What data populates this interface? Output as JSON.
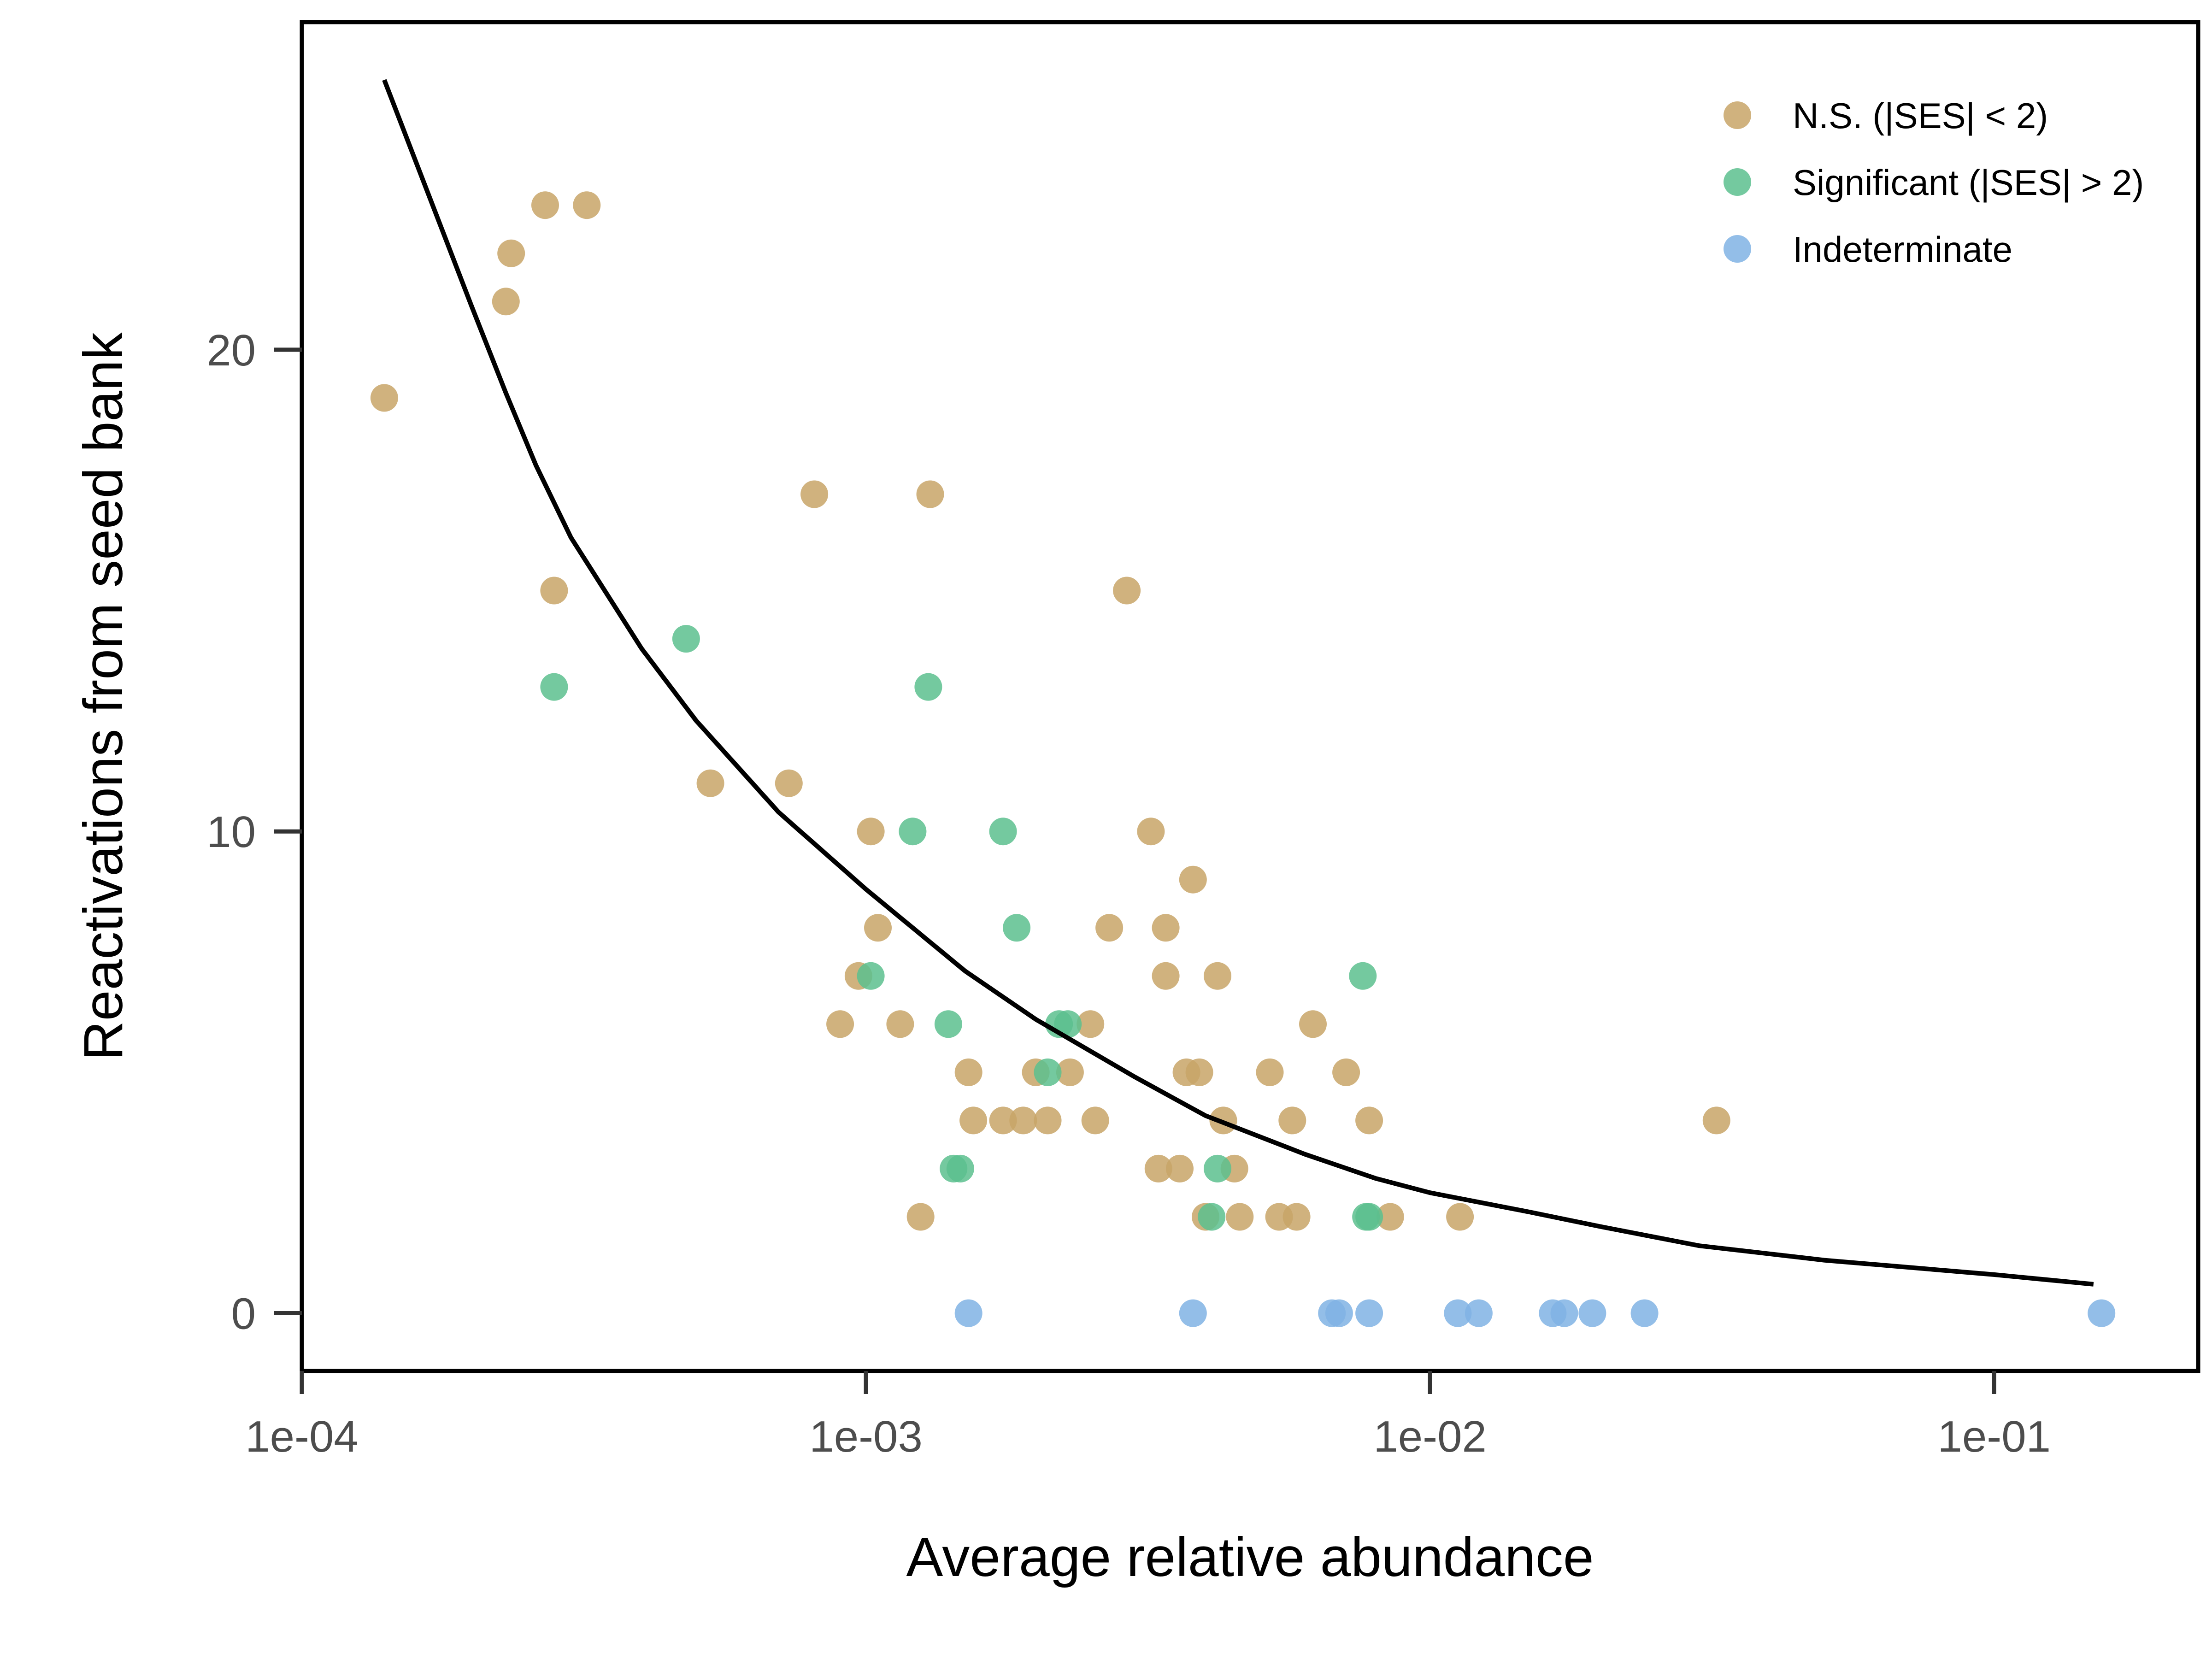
{
  "chart_data": {
    "type": "scatter",
    "title": "",
    "xlabel": "Average relative abundance",
    "ylabel": "Reactivations from seed bank",
    "x_scale": "log10",
    "xlim": [
      0.0001,
      0.23
    ],
    "ylim": [
      -1.2,
      26.8
    ],
    "x_ticks": [
      {
        "value": 0.0001,
        "label": "1e-04"
      },
      {
        "value": 0.001,
        "label": "1e-03"
      },
      {
        "value": 0.01,
        "label": "1e-02"
      },
      {
        "value": 0.1,
        "label": "1e-01"
      }
    ],
    "y_ticks": [
      {
        "value": 0,
        "label": "0"
      },
      {
        "value": 10,
        "label": "10"
      },
      {
        "value": 20,
        "label": "20"
      }
    ],
    "grid": false,
    "legend_position": "top-right",
    "series": [
      {
        "name": "N.S. (|SES| < 2)",
        "color": "#c8a467",
        "points": [
          [
            0.00014,
            19
          ],
          [
            0.00023,
            21
          ],
          [
            0.000235,
            22
          ],
          [
            0.00027,
            23
          ],
          [
            0.00032,
            23
          ],
          [
            0.00028,
            15
          ],
          [
            0.00053,
            11
          ],
          [
            0.00073,
            11
          ],
          [
            0.00081,
            17
          ],
          [
            0.0013,
            17
          ],
          [
            0.00102,
            10
          ],
          [
            0.00105,
            8
          ],
          [
            0.00097,
            7
          ],
          [
            0.0009,
            6
          ],
          [
            0.00115,
            6
          ],
          [
            0.00125,
            2
          ],
          [
            0.00152,
            5
          ],
          [
            0.00155,
            4
          ],
          [
            0.00175,
            4
          ],
          [
            0.0019,
            4
          ],
          [
            0.002,
            5
          ],
          [
            0.0021,
            4
          ],
          [
            0.0023,
            5
          ],
          [
            0.0025,
            6
          ],
          [
            0.00255,
            4
          ],
          [
            0.0027,
            8
          ],
          [
            0.0029,
            15
          ],
          [
            0.0032,
            10
          ],
          [
            0.0033,
            3
          ],
          [
            0.0034,
            8
          ],
          [
            0.0034,
            7
          ],
          [
            0.0036,
            3
          ],
          [
            0.0037,
            5
          ],
          [
            0.0038,
            9
          ],
          [
            0.0039,
            5
          ],
          [
            0.004,
            2
          ],
          [
            0.0042,
            7
          ],
          [
            0.0043,
            4
          ],
          [
            0.0045,
            3
          ],
          [
            0.0046,
            2
          ],
          [
            0.0052,
            5
          ],
          [
            0.0054,
            2
          ],
          [
            0.0057,
            4
          ],
          [
            0.0058,
            2
          ],
          [
            0.0062,
            6
          ],
          [
            0.0071,
            5
          ],
          [
            0.0078,
            4
          ],
          [
            0.0085,
            2
          ],
          [
            0.0113,
            2
          ],
          [
            0.0322,
            4
          ]
        ]
      },
      {
        "name": "Significant (|SES| > 2)",
        "color": "#5cc08e",
        "points": [
          [
            0.00028,
            13
          ],
          [
            0.00048,
            14
          ],
          [
            0.00102,
            7
          ],
          [
            0.00121,
            10
          ],
          [
            0.00129,
            13
          ],
          [
            0.0014,
            6
          ],
          [
            0.00143,
            3
          ],
          [
            0.00147,
            3
          ],
          [
            0.00175,
            10
          ],
          [
            0.00185,
            8
          ],
          [
            0.0021,
            5
          ],
          [
            0.0022,
            6
          ],
          [
            0.00228,
            6
          ],
          [
            0.0041,
            2
          ],
          [
            0.0042,
            3
          ],
          [
            0.0076,
            7
          ],
          [
            0.0077,
            2
          ],
          [
            0.0078,
            2
          ]
        ]
      },
      {
        "name": "Indeterminate",
        "color": "#80b3e4",
        "points": [
          [
            0.00152,
            0
          ],
          [
            0.0038,
            0
          ],
          [
            0.0067,
            0
          ],
          [
            0.0069,
            0
          ],
          [
            0.0078,
            0
          ],
          [
            0.0112,
            0
          ],
          [
            0.0122,
            0
          ],
          [
            0.0165,
            0
          ],
          [
            0.0173,
            0
          ],
          [
            0.0194,
            0
          ],
          [
            0.024,
            0
          ],
          [
            0.155,
            0
          ]
        ]
      }
    ],
    "fit_line": {
      "color": "#000000",
      "points": [
        [
          0.00014,
          25.6
        ],
        [
          0.0002,
          20.9
        ],
        [
          0.00023,
          19.1
        ],
        [
          0.00026,
          17.6
        ],
        [
          0.0003,
          16.1
        ],
        [
          0.0004,
          13.8
        ],
        [
          0.0005,
          12.3
        ],
        [
          0.0007,
          10.4
        ],
        [
          0.001,
          8.8
        ],
        [
          0.0015,
          7.1
        ],
        [
          0.002,
          6.1
        ],
        [
          0.003,
          4.9
        ],
        [
          0.004,
          4.1
        ],
        [
          0.006,
          3.3
        ],
        [
          0.008,
          2.8
        ],
        [
          0.01,
          2.5
        ],
        [
          0.015,
          2.1
        ],
        [
          0.02,
          1.8
        ],
        [
          0.03,
          1.4
        ],
        [
          0.05,
          1.1
        ],
        [
          0.1,
          0.8
        ],
        [
          0.15,
          0.6
        ]
      ]
    }
  }
}
